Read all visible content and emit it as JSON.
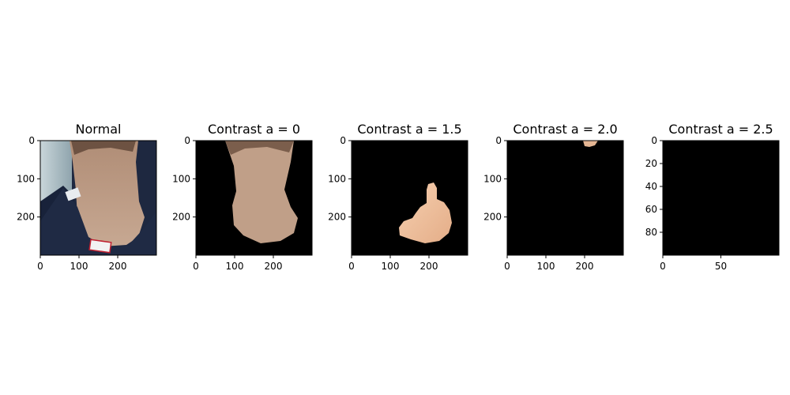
{
  "figure": {
    "background": "#ffffff",
    "frame_color": "#000000",
    "panel_fill": "#000000"
  },
  "chart_data": [
    {
      "type": "image",
      "title": "Normal",
      "content": "photo: back of neck with navy shirt collar and white label",
      "xlim": [
        0,
        300
      ],
      "ylim": [
        300,
        0
      ],
      "xticks": [
        0,
        100,
        200
      ],
      "yticks": [
        0,
        100,
        200
      ],
      "colors": {
        "skin": "#bf9e86",
        "hair": "#6d5242",
        "shirt": "#1e2840",
        "wall": "#a9bcc3"
      }
    },
    {
      "type": "image",
      "title": "Contrast a = 0",
      "content": "masked neck region on black background",
      "xlim": [
        0,
        300
      ],
      "ylim": [
        300,
        0
      ],
      "xticks": [
        0,
        100,
        200
      ],
      "yticks": [
        0,
        100,
        200
      ],
      "colors": {
        "skin": "#c09f88",
        "hair": "#7b5e4c"
      }
    },
    {
      "type": "image",
      "title": "Contrast a = 1.5",
      "content": "small bright skin region on black background",
      "xlim": [
        0,
        300
      ],
      "ylim": [
        300,
        0
      ],
      "xticks": [
        0,
        100,
        200
      ],
      "yticks": [
        0,
        100,
        200
      ],
      "colors": {
        "skin": "#efc09d"
      }
    },
    {
      "type": "image",
      "title": "Contrast a = 2.0",
      "content": "tiny skin patch near top on black background",
      "xlim": [
        0,
        300
      ],
      "ylim": [
        300,
        0
      ],
      "xticks": [
        0,
        100,
        200
      ],
      "yticks": [
        0,
        100,
        200
      ],
      "colors": {
        "skin": "#e4b593"
      }
    },
    {
      "type": "image",
      "title": "Contrast a = 2.5",
      "content": "fully black image",
      "xlim": [
        0,
        100
      ],
      "ylim": [
        100,
        0
      ],
      "xticks": [
        0,
        50
      ],
      "yticks": [
        0,
        20,
        40,
        60,
        80
      ],
      "colors": {}
    }
  ]
}
